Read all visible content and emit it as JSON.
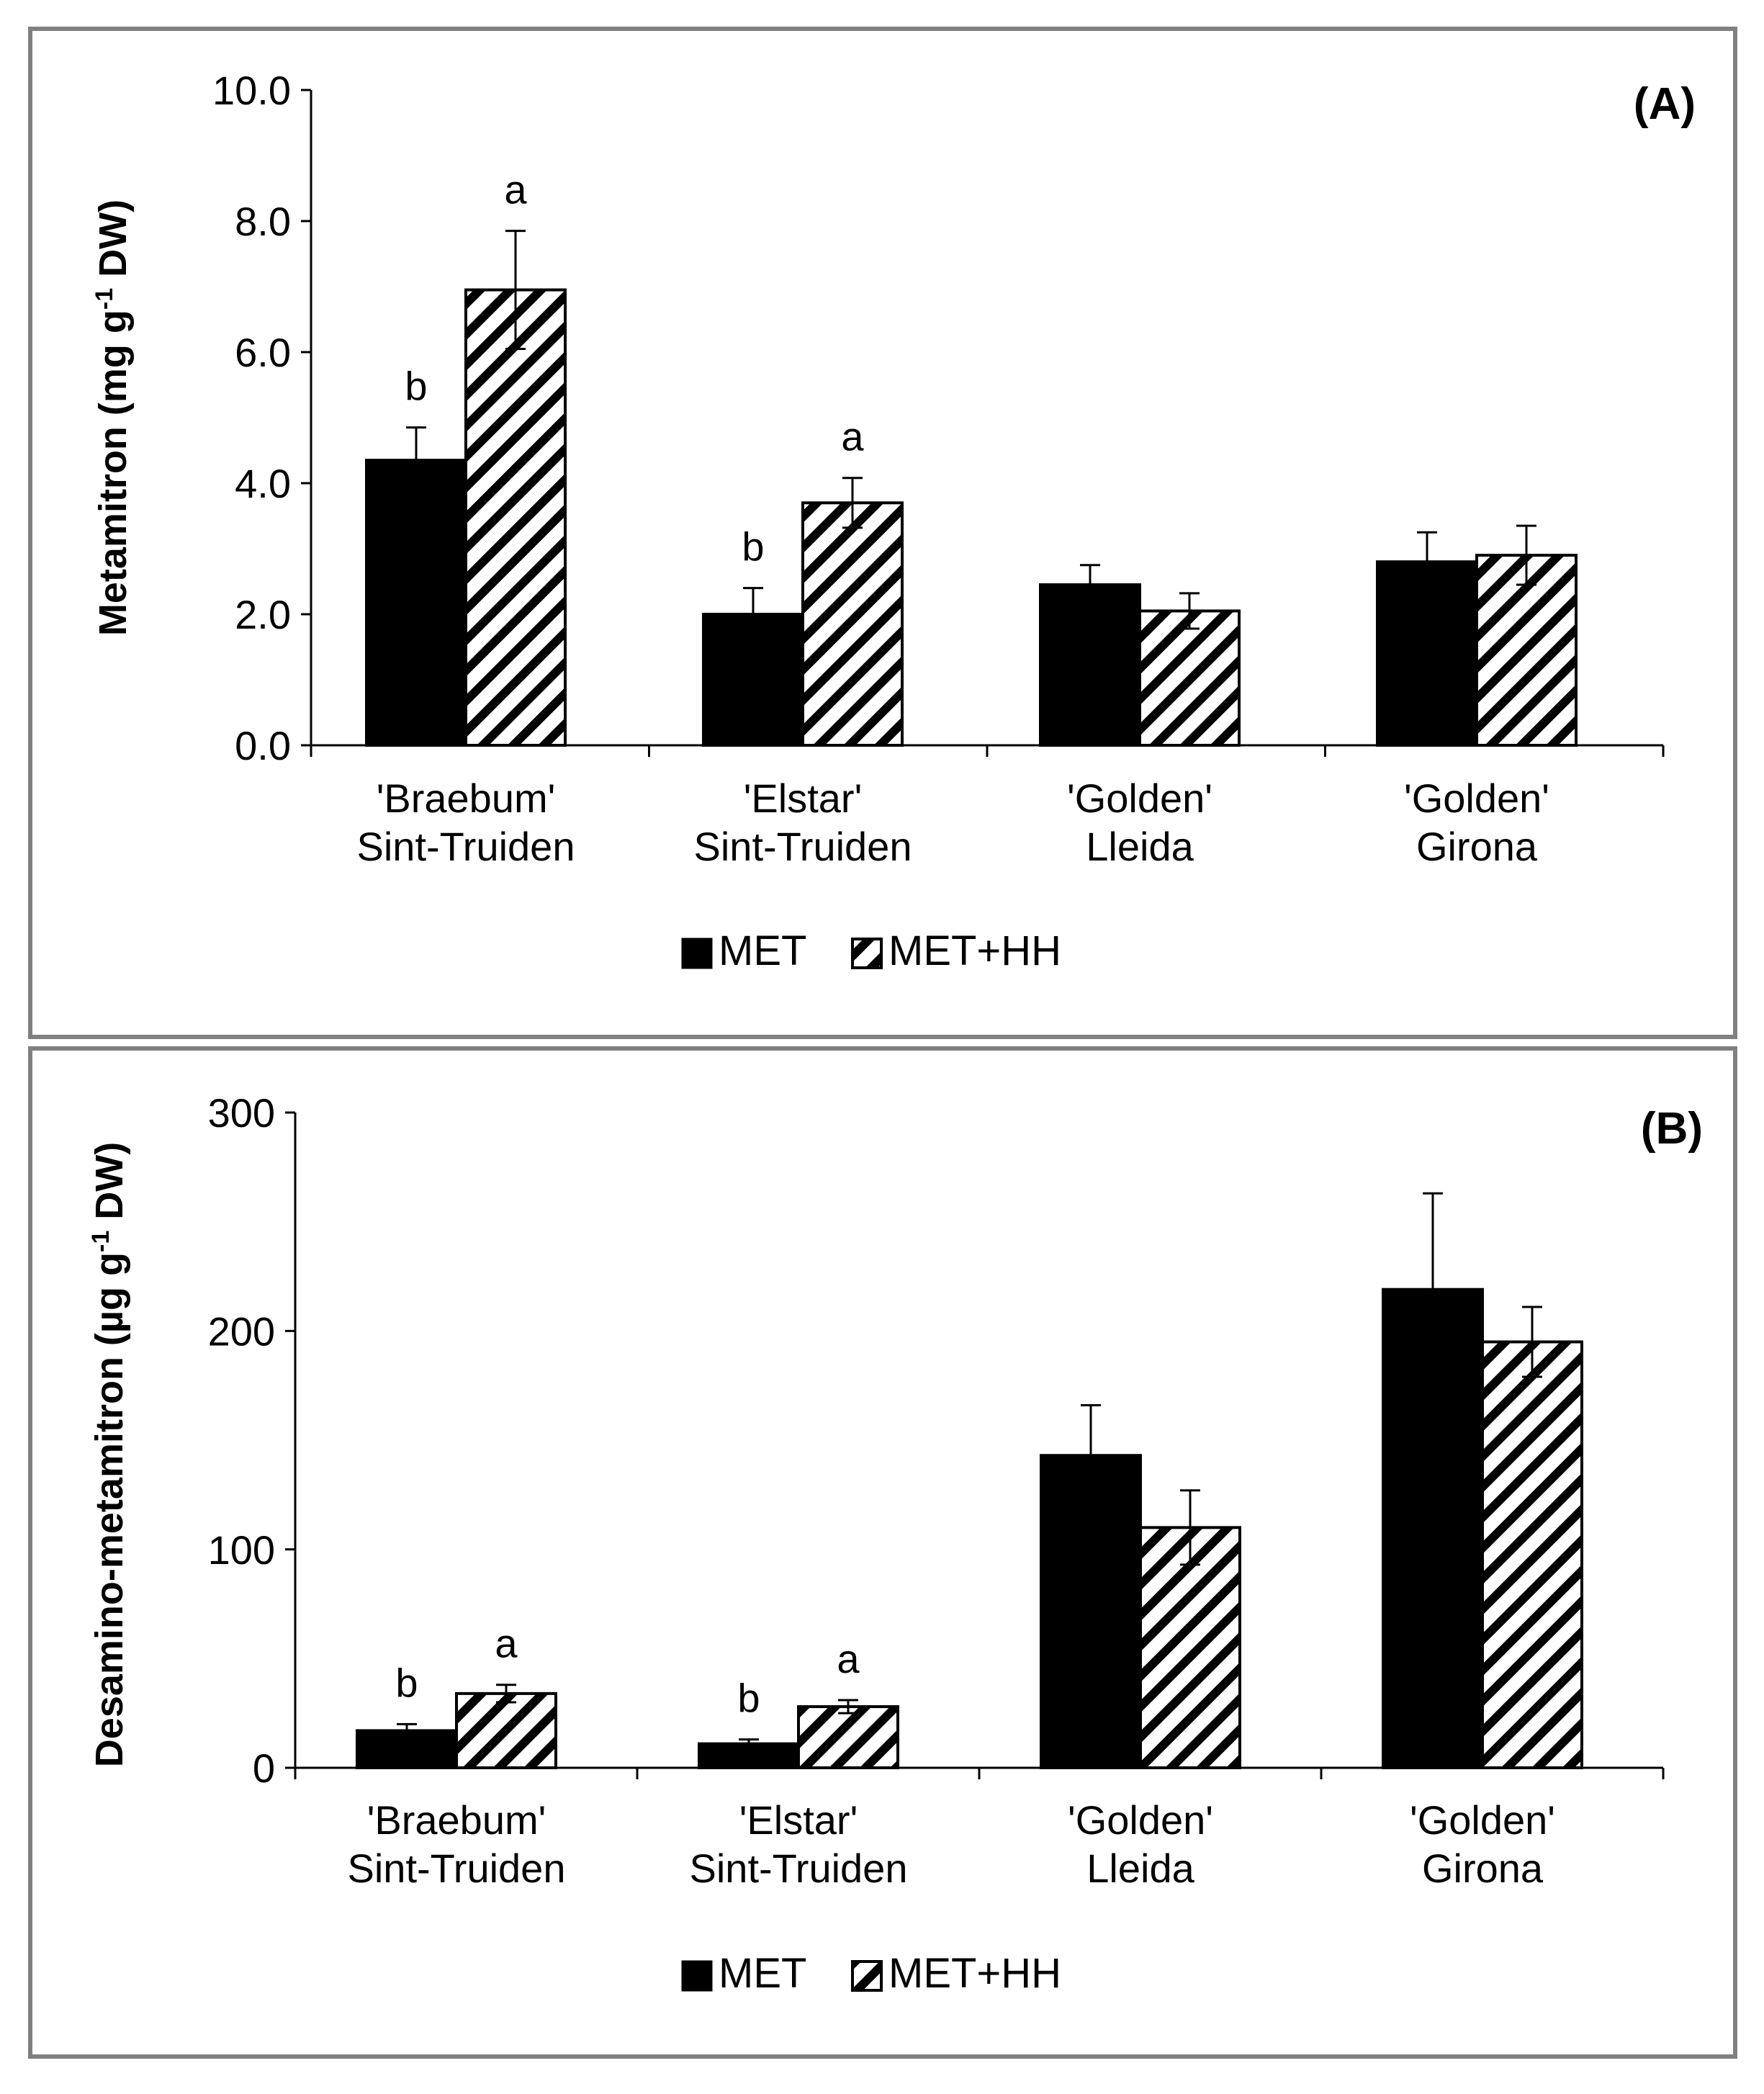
{
  "legend": {
    "met": "MET",
    "met_hh": "MET+HH"
  },
  "chart_data": [
    {
      "id": "A",
      "type": "bar",
      "panel_label": "(A)",
      "ylabel_main": "Metamitron (mg g",
      "ylabel_sup": "-1",
      "ylabel_end": " DW)",
      "ylim": [
        0,
        10
      ],
      "yticks": [
        "0.0",
        "2.0",
        "4.0",
        "6.0",
        "8.0",
        "10.0"
      ],
      "categories": [
        [
          "'Braebum'",
          "Sint-Truiden"
        ],
        [
          "'Elstar'",
          "Sint-Truiden"
        ],
        [
          "'Golden'",
          "Lleida"
        ],
        [
          "'Golden'",
          "Girona"
        ]
      ],
      "series": [
        {
          "name": "MET",
          "values": [
            4.35,
            2.0,
            2.45,
            2.8
          ],
          "errors": [
            0.5,
            0.4,
            0.3,
            0.45
          ],
          "letters": [
            "b",
            "b",
            "",
            ""
          ]
        },
        {
          "name": "MET+HH",
          "values": [
            6.95,
            3.7,
            2.05,
            2.9
          ],
          "errors": [
            0.9,
            0.38,
            0.27,
            0.45
          ],
          "letters": [
            "a",
            "a",
            "",
            ""
          ]
        }
      ]
    },
    {
      "id": "B",
      "type": "bar",
      "panel_label": "(B)",
      "ylabel_main": "Desamino-metamitron  (µg g",
      "ylabel_sup": "-1",
      "ylabel_end": " DW)",
      "ylim": [
        0,
        300
      ],
      "yticks": [
        "0",
        "100",
        "200",
        "300"
      ],
      "categories": [
        [
          "'Braebum'",
          "Sint-Truiden"
        ],
        [
          "'Elstar'",
          "Sint-Truiden"
        ],
        [
          "'Golden'",
          "Lleida"
        ],
        [
          "'Golden'",
          "Girona"
        ]
      ],
      "series": [
        {
          "name": "MET",
          "values": [
            17,
            11,
            143,
            219
          ],
          "errors": [
            3,
            2,
            23,
            44
          ],
          "letters": [
            "b",
            "b",
            "",
            ""
          ]
        },
        {
          "name": "MET+HH",
          "values": [
            34,
            28,
            110,
            195
          ],
          "errors": [
            4,
            3,
            17,
            16
          ],
          "letters": [
            "a",
            "a",
            "",
            ""
          ]
        }
      ]
    }
  ]
}
